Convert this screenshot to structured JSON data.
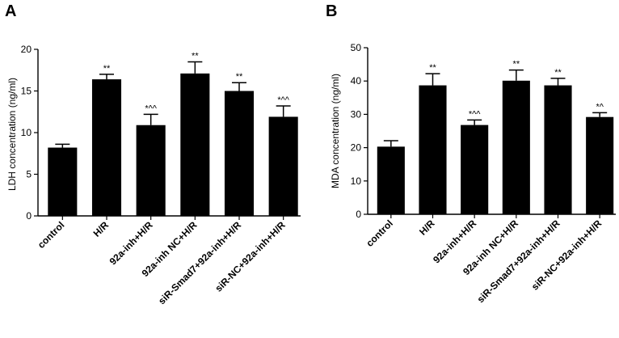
{
  "chart_data": [
    {
      "panel": "A",
      "type": "bar",
      "title": "",
      "xlabel": "",
      "ylabel": "LDH concentration (ng/ml)",
      "ylim": [
        0,
        20
      ],
      "yticks": [
        0,
        5,
        10,
        15,
        20
      ],
      "grid": false,
      "categories": [
        "control",
        "H/R",
        "92a-inh+H/R",
        "92a-inh NC+H/R",
        "siR-Smad7+92a-inh+H/R",
        "siR-NC+92a-inh+H/R"
      ],
      "values": [
        8.2,
        16.4,
        10.9,
        17.1,
        15.0,
        11.9
      ],
      "errors": [
        0.4,
        0.6,
        1.3,
        1.4,
        1.0,
        1.3
      ],
      "annotations": [
        "",
        "**",
        "*^^",
        "**",
        "**",
        "*^^"
      ]
    },
    {
      "panel": "B",
      "type": "bar",
      "title": "",
      "xlabel": "",
      "ylabel": "MDA concentration (ng/ml)",
      "ylim": [
        0,
        50
      ],
      "yticks": [
        0,
        10,
        20,
        30,
        40,
        50
      ],
      "grid": false,
      "categories": [
        "control",
        "H/R",
        "92a-inh+H/R",
        "92a-inh NC+H/R",
        "siR-Smad7+92a-inh+H/R",
        "siR-NC+92a-inh+H/R"
      ],
      "values": [
        20.3,
        38.7,
        26.8,
        40.1,
        38.7,
        29.2
      ],
      "errors": [
        1.8,
        3.5,
        1.5,
        3.2,
        2.1,
        1.3
      ],
      "annotations": [
        "",
        "**",
        "*^^",
        "**",
        "**",
        "*^"
      ]
    }
  ]
}
